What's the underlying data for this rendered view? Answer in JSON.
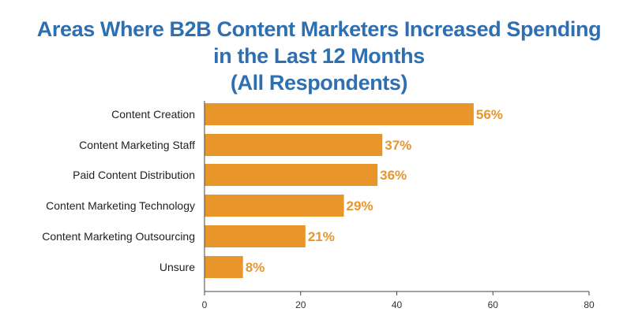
{
  "chart_data": {
    "type": "bar",
    "orientation": "horizontal",
    "title_lines": [
      "Areas Where B2B Content Marketers Increased Spending",
      "in the Last 12 Months",
      "(All Respondents)"
    ],
    "categories": [
      "Content Creation",
      "Content Marketing Staff",
      "Paid Content Distribution",
      "Content Marketing Technology",
      "Content Marketing Outsourcing",
      "Unsure"
    ],
    "values": [
      56,
      37,
      36,
      29,
      21,
      8
    ],
    "value_labels": [
      "56%",
      "37%",
      "36%",
      "29%",
      "21%",
      "8%"
    ],
    "xlim": [
      0,
      80
    ],
    "xticks": [
      0,
      20,
      40,
      60,
      80
    ],
    "xlabel": "",
    "ylabel": "",
    "grid": false,
    "bar_color": "#e8962a",
    "label_color": "#e8962a",
    "title_color": "#2e6fb2"
  }
}
